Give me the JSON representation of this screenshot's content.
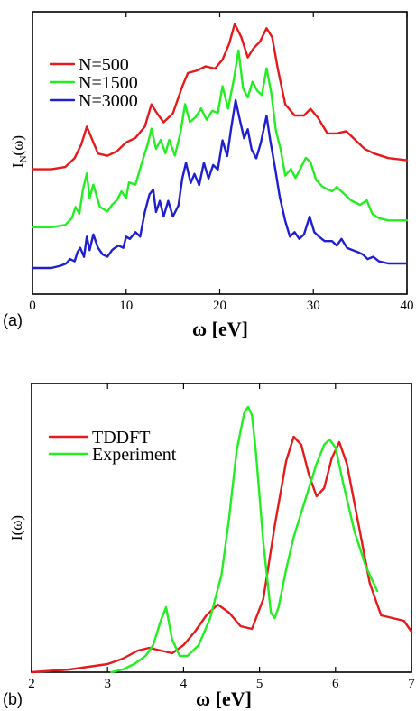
{
  "colors": {
    "red": "#e41a1c",
    "green": "#22ee22",
    "blue": "#1f1fd0"
  },
  "chart_data": [
    {
      "type": "line",
      "panel_label": "(a)",
      "xlabel": "ω  [eV]",
      "ylabel": "I",
      "ylabel_sub": "N",
      "ylabel_suffix": "(ω)",
      "xlim": [
        0,
        40
      ],
      "xticks": [
        0,
        10,
        20,
        30,
        40
      ],
      "ylim": [
        0,
        1
      ],
      "yticks_shown": false,
      "legend_position": "top-left",
      "series": [
        {
          "name": "N=500",
          "color": "#e41a1c",
          "x": [
            0,
            2,
            3.5,
            4.5,
            5.2,
            5.8,
            6.3,
            7,
            8,
            9,
            10,
            11,
            12,
            12.7,
            13.3,
            14,
            15,
            16,
            16.6,
            17.5,
            18.5,
            19.5,
            20.3,
            21,
            21.6,
            22.3,
            23,
            23.6,
            24.3,
            25,
            25.6,
            26.2,
            27,
            28,
            29,
            29.7,
            30.5,
            31.5,
            32.5,
            33.5,
            34.5,
            35.5,
            36.5,
            38,
            40
          ],
          "y": [
            0.28,
            0.28,
            0.29,
            0.33,
            0.39,
            0.47,
            0.42,
            0.35,
            0.34,
            0.36,
            0.4,
            0.42,
            0.47,
            0.57,
            0.53,
            0.49,
            0.53,
            0.65,
            0.71,
            0.72,
            0.74,
            0.73,
            0.77,
            0.84,
            0.93,
            0.87,
            0.78,
            0.82,
            0.85,
            0.91,
            0.87,
            0.73,
            0.57,
            0.52,
            0.52,
            0.55,
            0.51,
            0.44,
            0.44,
            0.45,
            0.41,
            0.37,
            0.35,
            0.33,
            0.32
          ]
        },
        {
          "name": "N=1500",
          "color": "#22ee22",
          "x": [
            0,
            2,
            3.5,
            4.2,
            4.6,
            5,
            5.4,
            5.8,
            6.1,
            6.5,
            7.2,
            8,
            8.5,
            9,
            9.5,
            10,
            10.3,
            11,
            11.7,
            12.3,
            12.7,
            13.2,
            13.7,
            14.2,
            14.6,
            15.2,
            15.8,
            16.3,
            16.8,
            17.4,
            18,
            18.6,
            19.2,
            19.8,
            20.3,
            20.9,
            21.5,
            22,
            22.5,
            23,
            23.5,
            24,
            24.5,
            25,
            25.5,
            26,
            26.5,
            27,
            27.6,
            28.1,
            28.6,
            29.2,
            29.7,
            30.3,
            31,
            32,
            32.5,
            33,
            34,
            35,
            35.7,
            36.3,
            37,
            38,
            40
          ],
          "y": [
            0.13,
            0.13,
            0.14,
            0.17,
            0.22,
            0.19,
            0.3,
            0.37,
            0.26,
            0.32,
            0.22,
            0.2,
            0.23,
            0.25,
            0.29,
            0.26,
            0.33,
            0.32,
            0.42,
            0.5,
            0.57,
            0.48,
            0.52,
            0.46,
            0.52,
            0.45,
            0.55,
            0.68,
            0.6,
            0.62,
            0.66,
            0.61,
            0.65,
            0.64,
            0.76,
            0.66,
            0.79,
            0.92,
            0.75,
            0.71,
            0.78,
            0.74,
            0.72,
            0.84,
            0.73,
            0.56,
            0.48,
            0.36,
            0.39,
            0.35,
            0.39,
            0.44,
            0.42,
            0.34,
            0.31,
            0.29,
            0.31,
            0.29,
            0.25,
            0.23,
            0.25,
            0.19,
            0.17,
            0.16,
            0.16
          ]
        },
        {
          "name": "N=3000",
          "color": "#1f1fd0",
          "x": [
            0,
            2,
            3,
            3.6,
            4,
            4.5,
            4.8,
            5.1,
            5.5,
            5.8,
            6.1,
            6.5,
            7,
            7.5,
            8,
            8.5,
            8.8,
            9.2,
            9.7,
            10,
            10.4,
            11,
            11.5,
            12,
            12.5,
            12.9,
            13.2,
            13.6,
            14,
            14.5,
            15,
            15.6,
            16,
            16.4,
            16.9,
            17.3,
            17.8,
            18.3,
            18.8,
            19.3,
            19.8,
            20.3,
            20.8,
            21.2,
            21.7,
            22.1,
            22.6,
            23,
            23.4,
            23.9,
            24.4,
            25,
            25.4,
            25.9,
            26.4,
            27,
            27.5,
            28,
            28.5,
            29,
            29.6,
            30.1,
            30.6,
            31.2,
            32,
            32.5,
            33,
            33.6,
            34.2,
            34.8,
            35.3,
            35.8,
            36.4,
            37,
            38,
            39,
            40
          ],
          "y": [
            0,
            0,
            0.01,
            0.02,
            0.04,
            0.03,
            0.07,
            0.09,
            0.05,
            0.14,
            0.08,
            0.15,
            0.09,
            0.06,
            0.05,
            0.08,
            0.09,
            0.1,
            0.09,
            0.14,
            0.13,
            0.16,
            0.14,
            0.25,
            0.33,
            0.35,
            0.25,
            0.3,
            0.23,
            0.3,
            0.23,
            0.28,
            0.4,
            0.47,
            0.38,
            0.42,
            0.37,
            0.47,
            0.4,
            0.46,
            0.44,
            0.57,
            0.5,
            0.62,
            0.75,
            0.67,
            0.58,
            0.62,
            0.53,
            0.49,
            0.56,
            0.68,
            0.57,
            0.45,
            0.32,
            0.21,
            0.14,
            0.16,
            0.13,
            0.15,
            0.23,
            0.16,
            0.14,
            0.12,
            0.12,
            0.1,
            0.13,
            0.09,
            0.08,
            0.07,
            0.06,
            0.04,
            0.05,
            0.03,
            0.02,
            0.02,
            0.02
          ]
        }
      ]
    },
    {
      "type": "line",
      "panel_label": "(b)",
      "xlabel": "ω  [eV]",
      "ylabel": "I(ω)",
      "xlim": [
        2,
        7
      ],
      "xticks": [
        2,
        3,
        4,
        5,
        6,
        7
      ],
      "ylim": [
        0,
        1
      ],
      "yticks_shown": false,
      "legend_position": "top-left",
      "series": [
        {
          "name": "TDDFT",
          "color": "#e41a1c",
          "x": [
            2,
            2.5,
            3,
            3.2,
            3.4,
            3.55,
            3.7,
            3.85,
            4,
            4.15,
            4.3,
            4.45,
            4.6,
            4.75,
            4.9,
            5.05,
            5.2,
            5.35,
            5.45,
            5.55,
            5.65,
            5.75,
            5.85,
            5.95,
            6.05,
            6.15,
            6.3,
            6.45,
            6.6,
            6.75,
            6.9,
            7
          ],
          "y": [
            0,
            0.01,
            0.03,
            0.05,
            0.08,
            0.09,
            0.08,
            0.07,
            0.1,
            0.15,
            0.21,
            0.25,
            0.22,
            0.17,
            0.16,
            0.27,
            0.54,
            0.78,
            0.87,
            0.84,
            0.73,
            0.65,
            0.68,
            0.79,
            0.85,
            0.77,
            0.55,
            0.33,
            0.21,
            0.2,
            0.19,
            0.15
          ]
        },
        {
          "name": "Experiment",
          "color": "#22ee22",
          "x": [
            3.05,
            3.2,
            3.35,
            3.5,
            3.6,
            3.7,
            3.77,
            3.85,
            3.95,
            4.05,
            4.2,
            4.35,
            4.5,
            4.6,
            4.7,
            4.8,
            4.85,
            4.9,
            4.95,
            5.05,
            5.15,
            5.2,
            5.25,
            5.35,
            5.45,
            5.55,
            5.65,
            5.75,
            5.85,
            5.92,
            6,
            6.1,
            6.25,
            6.4,
            6.55
          ],
          "y": [
            0,
            0.01,
            0.03,
            0.06,
            0.1,
            0.19,
            0.24,
            0.12,
            0.06,
            0.06,
            0.1,
            0.2,
            0.36,
            0.57,
            0.82,
            0.96,
            0.98,
            0.95,
            0.82,
            0.48,
            0.22,
            0.2,
            0.24,
            0.38,
            0.5,
            0.59,
            0.68,
            0.77,
            0.84,
            0.86,
            0.83,
            0.7,
            0.52,
            0.39,
            0.3
          ]
        }
      ]
    }
  ]
}
